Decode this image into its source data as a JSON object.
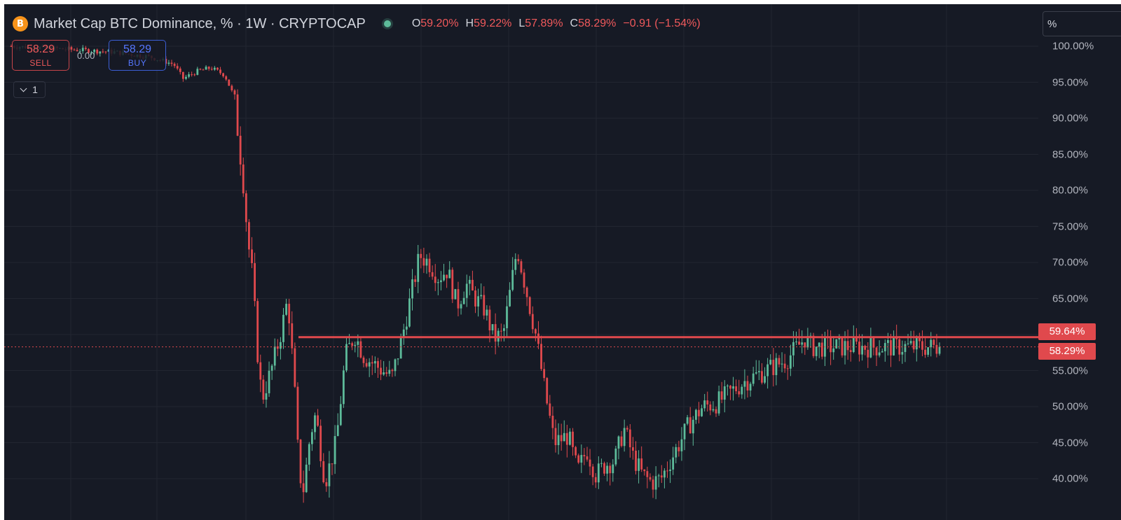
{
  "header": {
    "title": "Market Cap BTC Dominance, % · 1W · CRYPTOCAP",
    "icon": "bitcoin-icon",
    "icon_glyph": "B",
    "ohlc": {
      "o_key": "O",
      "o_val": "59.20%",
      "h_key": "H",
      "h_val": "59.22%",
      "l_key": "L",
      "l_val": "57.89%",
      "c_key": "C",
      "c_val": "58.29%",
      "change": "−0.91 (−1.54%)"
    }
  },
  "trade": {
    "sell_price": "58.29",
    "sell_label": "SELL",
    "spread": "0.00",
    "buy_price": "58.29",
    "buy_label": "BUY"
  },
  "indicator_toggle": {
    "count": "1"
  },
  "scale": {
    "mode_label": "%"
  },
  "price_tags": {
    "line_level": "59.64%",
    "last_price": "58.29%"
  },
  "colors": {
    "background": "#161a25",
    "up": "#5dbb9a",
    "down": "#e0494d",
    "grid": "#222631",
    "axis_text": "#b2b5be"
  },
  "chart_data": {
    "type": "candlestick",
    "symbol": "Market Cap BTC Dominance",
    "timeframe": "1W",
    "unit": "%",
    "ylim": [
      38,
      100
    ],
    "yticks": [
      "100.00%",
      "95.00%",
      "90.00%",
      "85.00%",
      "80.00%",
      "75.00%",
      "70.00%",
      "65.00%",
      "60.00%",
      "55.00%",
      "50.00%",
      "45.00%",
      "40.00%"
    ],
    "tick_values": [
      100,
      95,
      90,
      85,
      80,
      75,
      70,
      65,
      60,
      55,
      50,
      45,
      40
    ],
    "horizontal_line": 59.64,
    "last_price": 58.29,
    "grid": true,
    "close_path": [
      [
        0.0,
        100.0
      ],
      [
        0.07,
        99.5
      ],
      [
        0.11,
        99.2
      ],
      [
        0.15,
        98.5
      ],
      [
        0.175,
        97.5
      ],
      [
        0.185,
        95.5
      ],
      [
        0.2,
        96.5
      ],
      [
        0.215,
        97.0
      ],
      [
        0.23,
        96.0
      ],
      [
        0.24,
        93.0
      ],
      [
        0.245,
        87.0
      ],
      [
        0.25,
        81.0
      ],
      [
        0.255,
        73.0
      ],
      [
        0.26,
        68.0
      ],
      [
        0.265,
        58.0
      ],
      [
        0.27,
        51.0
      ],
      [
        0.28,
        55.0
      ],
      [
        0.29,
        60.0
      ],
      [
        0.298,
        65.0
      ],
      [
        0.305,
        53.0
      ],
      [
        0.31,
        41.0
      ],
      [
        0.315,
        38.5
      ],
      [
        0.322,
        46.0
      ],
      [
        0.328,
        49.0
      ],
      [
        0.338,
        39.5
      ],
      [
        0.35,
        45.0
      ],
      [
        0.36,
        57.0
      ],
      [
        0.37,
        60.0
      ],
      [
        0.38,
        57.0
      ],
      [
        0.39,
        56.0
      ],
      [
        0.41,
        54.0
      ],
      [
        0.42,
        59.0
      ],
      [
        0.43,
        65.0
      ],
      [
        0.44,
        71.0
      ],
      [
        0.45,
        70.0
      ],
      [
        0.46,
        68.0
      ],
      [
        0.47,
        69.0
      ],
      [
        0.48,
        64.0
      ],
      [
        0.49,
        67.0
      ],
      [
        0.5,
        65.0
      ],
      [
        0.51,
        63.5
      ],
      [
        0.52,
        59.5
      ],
      [
        0.53,
        60.0
      ],
      [
        0.54,
        68.0
      ],
      [
        0.545,
        72.0
      ],
      [
        0.555,
        66.0
      ],
      [
        0.565,
        60.0
      ],
      [
        0.575,
        52.0
      ],
      [
        0.585,
        45.0
      ],
      [
        0.6,
        46.0
      ],
      [
        0.61,
        41.0
      ],
      [
        0.62,
        44.0
      ],
      [
        0.63,
        40.5
      ],
      [
        0.64,
        42.0
      ],
      [
        0.65,
        42.5
      ],
      [
        0.66,
        47.0
      ],
      [
        0.67,
        43.0
      ],
      [
        0.68,
        40.5
      ],
      [
        0.69,
        39.5
      ],
      [
        0.7,
        40.0
      ],
      [
        0.71,
        42.5
      ],
      [
        0.72,
        45.0
      ],
      [
        0.73,
        47.5
      ],
      [
        0.745,
        50.0
      ],
      [
        0.76,
        50.5
      ],
      [
        0.775,
        52.0
      ],
      [
        0.79,
        53.5
      ],
      [
        0.805,
        54.5
      ],
      [
        0.82,
        55.5
      ],
      [
        0.835,
        56.5
      ],
      [
        0.845,
        58.0
      ],
      [
        0.855,
        59.5
      ],
      [
        0.862,
        58.29
      ]
    ]
  }
}
